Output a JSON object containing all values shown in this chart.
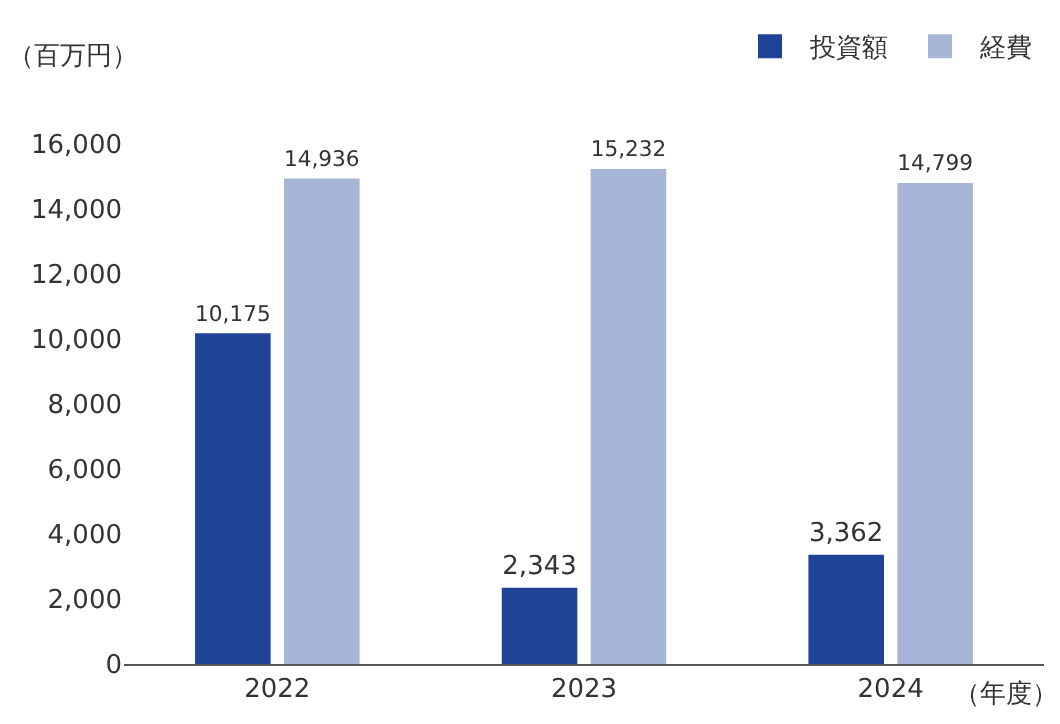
{
  "chart_data": {
    "type": "bar",
    "ylabel": "（百万円）",
    "xlabel": "（年度）",
    "categories": [
      "2022",
      "2023",
      "2024"
    ],
    "series": [
      {
        "name": "投資額",
        "color": "#1f4397",
        "values": [
          10175,
          2343,
          3362
        ],
        "value_labels": [
          "10,175",
          "2,343",
          "3,362"
        ]
      },
      {
        "name": "経費",
        "color": "#a7b5d7",
        "values": [
          14936,
          15232,
          14799
        ],
        "value_labels": [
          "14,936",
          "15,232",
          "14,799"
        ]
      }
    ],
    "ylim": [
      0,
      16000
    ],
    "yticks": [
      {
        "value": 0,
        "label": "0"
      },
      {
        "value": 2000,
        "label": "2,000"
      },
      {
        "value": 4000,
        "label": "4,000"
      },
      {
        "value": 6000,
        "label": "6,000"
      },
      {
        "value": 8000,
        "label": "8,000"
      },
      {
        "value": 10000,
        "label": "10,000"
      },
      {
        "value": 12000,
        "label": "12,000"
      },
      {
        "value": 14000,
        "label": "14,000"
      },
      {
        "value": 16000,
        "label": "16,000"
      }
    ],
    "legend": "top right",
    "grid": false
  }
}
